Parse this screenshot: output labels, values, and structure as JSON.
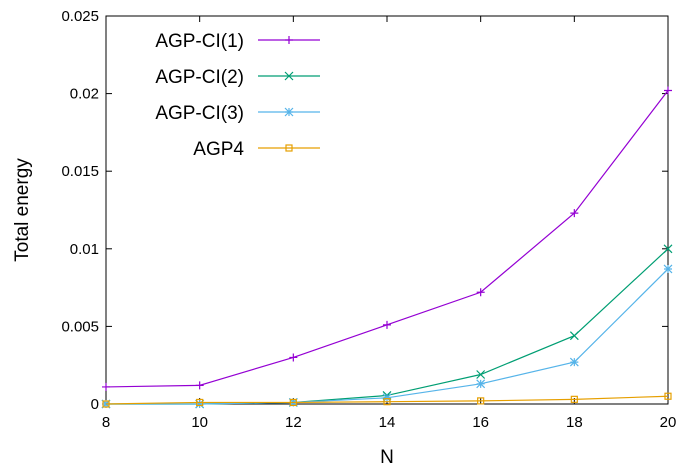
{
  "chart_data": {
    "type": "line",
    "title": "",
    "xlabel": "N",
    "ylabel": "Total energy",
    "xlim": [
      8,
      20
    ],
    "ylim": [
      0,
      0.025
    ],
    "x": [
      8,
      10,
      12,
      14,
      16,
      18,
      20
    ],
    "xticks": [
      "8",
      "10",
      "12",
      "14",
      "16",
      "18",
      "20"
    ],
    "yticks": [
      "0",
      "0.005",
      "0.01",
      "0.015",
      "0.02",
      "0.025"
    ],
    "grid": false,
    "legend_position": "top-left",
    "series": [
      {
        "name": "AGP-CI(1)",
        "color": "#9400d3",
        "marker": "plus",
        "values": [
          0.0011,
          0.0012,
          0.003,
          0.0051,
          0.0072,
          0.0123,
          0.0202
        ]
      },
      {
        "name": "AGP-CI(2)",
        "color": "#009e73",
        "marker": "cross",
        "values": [
          0.0,
          0.0,
          0.0001,
          0.00055,
          0.0019,
          0.0044,
          0.01
        ]
      },
      {
        "name": "AGP-CI(3)",
        "color": "#56b4e9",
        "marker": "asterisk",
        "values": [
          0.0,
          0.0,
          0.0001,
          0.0004,
          0.0013,
          0.0027,
          0.0087
        ]
      },
      {
        "name": "AGP4",
        "color": "#e69f00",
        "marker": "square",
        "values": [
          0.0,
          0.0001,
          0.0001,
          0.00015,
          0.0002,
          0.0003,
          0.0005
        ]
      }
    ]
  }
}
